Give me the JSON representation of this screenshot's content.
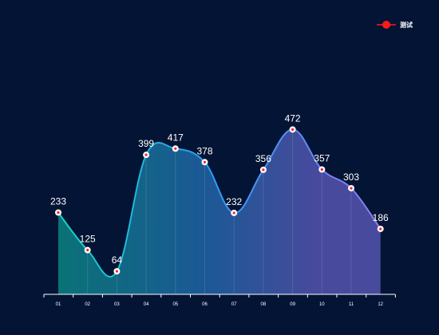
{
  "chart_data": {
    "type": "area",
    "categories": [
      "01",
      "02",
      "03",
      "04",
      "05",
      "06",
      "07",
      "08",
      "09",
      "10",
      "11",
      "12"
    ],
    "series": [
      {
        "name": "测试",
        "values": [
          233,
          125,
          64,
          399,
          417,
          378,
          232,
          356,
          472,
          357,
          303,
          186
        ]
      }
    ],
    "ylim": [
      0,
      560
    ],
    "smooth": true,
    "show_data_labels": true,
    "legend_position": "top-right",
    "colors": {
      "background": "#041435",
      "line_start": "#17d3c4",
      "line_mid": "#2a9df4",
      "line_end": "#8f7cf5",
      "fill_start": "#0a7a7c",
      "fill_mid": "#1d5f9e",
      "fill_end": "#4d4fa6",
      "marker_fill": "#ffffff",
      "marker_dot": "#ff2020",
      "legend_marker": "#ff1a1a",
      "text": "#ffffff",
      "axis": "#ffffff"
    }
  }
}
